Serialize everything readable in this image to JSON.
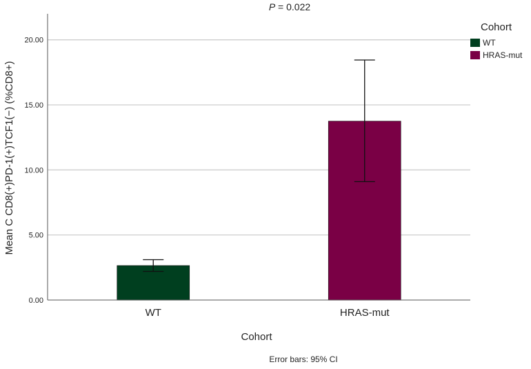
{
  "chart_data": {
    "type": "bar",
    "annotation": {
      "prefix": "P",
      "text": " = 0.022"
    },
    "xlabel": "Cohort",
    "ylabel": "Mean C CD8(+)PD-1(+)TCF1(−) (%CD8+)",
    "footnote": "Error bars: 95% CI",
    "categories": [
      "WT",
      "HRAS-mut"
    ],
    "values": [
      2.65,
      13.75
    ],
    "error_bars": {
      "lower": [
        2.2,
        9.1
      ],
      "upper": [
        3.1,
        18.45
      ]
    },
    "colors": [
      "#003f1f",
      "#7a0045"
    ],
    "ylim": [
      0,
      22
    ],
    "yticks": [
      0,
      5,
      10,
      15,
      20
    ],
    "ytick_labels": [
      "0.00",
      "5.00",
      "10.00",
      "15.00",
      "20.00"
    ],
    "grid": true,
    "legend": {
      "title": "Cohort",
      "position": "top-right",
      "entries": [
        {
          "label": "WT",
          "color": "#003f1f"
        },
        {
          "label": "HRAS-mut",
          "color": "#7a0045"
        }
      ]
    }
  }
}
